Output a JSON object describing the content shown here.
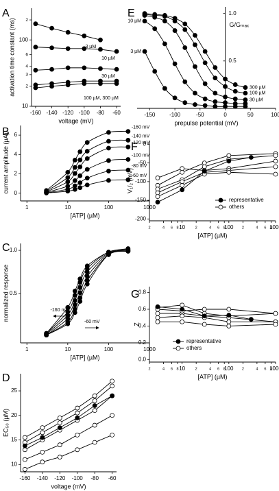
{
  "chart_data": [
    {
      "panel": "A",
      "type": "line",
      "ylabel": "activation time constant (ms)",
      "xlabel": "voltage (mV)",
      "x": [
        -160,
        -140,
        -120,
        -100,
        -80,
        -60
      ],
      "xlim": [
        -165,
        -55
      ],
      "xticks": [
        -160,
        -140,
        -120,
        -100,
        -80,
        -60
      ],
      "ylog": true,
      "ylim": [
        10,
        300
      ],
      "yticks": [
        10,
        {
          "value": 20,
          "label": "2"
        },
        {
          "value": 30,
          "label": "3"
        },
        {
          "value": 40,
          "label": "4"
        },
        {
          "value": 60,
          "label": "6"
        },
        100,
        {
          "value": 200,
          "label": "2"
        }
      ],
      "color": "#000000",
      "series": [
        {
          "name": "3 µM",
          "marker": "filled",
          "values": [
            175,
            150,
            130,
            115,
            100,
            null
          ]
        },
        {
          "name": "10 µM",
          "marker": "filled",
          "values": [
            78,
            76,
            74,
            74,
            72,
            67
          ]
        },
        {
          "name": "30 µM",
          "marker": "filled",
          "values": [
            35,
            36,
            38,
            38,
            37,
            36
          ]
        },
        {
          "marker": "filled",
          "values": [
            21,
            22,
            23,
            24,
            24,
            24
          ]
        },
        {
          "marker": "filled",
          "values": [
            19,
            20,
            21,
            22,
            22,
            22
          ]
        }
      ],
      "annotations": [
        "100 µM, 300 µM"
      ]
    },
    {
      "panel": "B",
      "type": "line",
      "ylabel": "current amplitude (µA)",
      "xlabel": "[ATP] (µM)",
      "smooth": true,
      "x": [
        3,
        10,
        15,
        20,
        30,
        100,
        300
      ],
      "xlog": true,
      "xlim": [
        0.7,
        1000
      ],
      "xticks": [
        1,
        10,
        100,
        1000
      ],
      "ylim": [
        -0.8,
        7
      ],
      "yticks": [
        0,
        2,
        4,
        6
      ],
      "color": "#000000",
      "series": [
        {
          "name": "-160 mV",
          "marker": "filled",
          "values": [
            0.28,
            2.16,
            3.42,
            4.29,
            5.25,
            6.28,
            6.39
          ]
        },
        {
          "name": "-140 mV",
          "marker": "filled",
          "values": [
            0.2,
            1.62,
            2.66,
            3.44,
            4.34,
            5.37,
            5.48
          ]
        },
        {
          "name": "-120 mV",
          "marker": "filled",
          "values": [
            0.14,
            1.18,
            2.04,
            2.72,
            3.58,
            4.66,
            4.78
          ]
        },
        {
          "name": "-100 mV",
          "marker": "filled",
          "values": [
            0.08,
            0.73,
            1.3,
            1.8,
            2.46,
            3.37,
            3.49
          ]
        },
        {
          "name": "-80 mV",
          "marker": "filled",
          "values": [
            0.04,
            0.41,
            0.76,
            1.08,
            1.56,
            2.29,
            2.39
          ]
        },
        {
          "name": "-60 mV",
          "marker": "filled",
          "values": [
            0.02,
            0.21,
            0.39,
            0.57,
            0.85,
            1.32,
            1.39
          ]
        }
      ]
    },
    {
      "panel": "C",
      "type": "line",
      "ylabel": "normalized response",
      "xlabel": "[ATP] (µM)",
      "smooth": true,
      "x": [
        3,
        10,
        15,
        20,
        30,
        100,
        300
      ],
      "xlog": true,
      "xlim": [
        0.7,
        1000
      ],
      "xticks": [
        1,
        10,
        100,
        1000
      ],
      "ylim": [
        -0.07,
        1.08
      ],
      "yticks": [
        0.5,
        {
          "value": 1,
          "label": "1.0"
        }
      ],
      "color": "#000000",
      "series": [
        {
          "marker": "filled",
          "values": [
            0.04,
            0.34,
            0.53,
            0.67,
            0.82,
            0.98,
            1.02
          ]
        },
        {
          "marker": "filled",
          "values": [
            0.04,
            0.29,
            0.48,
            0.63,
            0.79,
            0.98,
            1.01
          ]
        },
        {
          "marker": "filled",
          "values": [
            0.03,
            0.25,
            0.42,
            0.57,
            0.75,
            0.97,
            1.0
          ]
        },
        {
          "marker": "filled",
          "values": [
            0.02,
            0.21,
            0.37,
            0.51,
            0.7,
            0.96,
            1.0
          ]
        },
        {
          "marker": "filled",
          "values": [
            0.02,
            0.17,
            0.32,
            0.45,
            0.65,
            0.95,
            0.99
          ]
        },
        {
          "marker": "filled",
          "values": [
            0.02,
            0.15,
            0.28,
            0.41,
            0.61,
            0.95,
            0.99
          ]
        }
      ],
      "annotations": [
        "-160 mV",
        "-60 mV"
      ]
    },
    {
      "panel": "D",
      "type": "line",
      "ylabel": "EC₅₀ (µM)",
      "xlabel": "voltage (mV)",
      "x": [
        -160,
        -140,
        -120,
        -100,
        -80,
        -60
      ],
      "xlim": [
        -165,
        -55
      ],
      "xticks": [
        -160,
        -140,
        -120,
        -100,
        -80,
        -60
      ],
      "ylim": [
        8.5,
        28.5
      ],
      "yticks": [
        10,
        15,
        20,
        25
      ],
      "color": "#000000",
      "series": [
        {
          "marker": "filled",
          "values": [
            13.8,
            15.5,
            17.5,
            19.5,
            22,
            24
          ]
        },
        {
          "marker": "open",
          "values": [
            15.5,
            17.5,
            19.5,
            21.5,
            24,
            27
          ]
        },
        {
          "marker": "open",
          "values": [
            14.5,
            16.5,
            18.5,
            20.5,
            23,
            26
          ]
        },
        {
          "marker": "open",
          "values": [
            13,
            15,
            17,
            19,
            21,
            24
          ]
        },
        {
          "marker": "open",
          "values": [
            11,
            12.5,
            14,
            16,
            18,
            20
          ]
        },
        {
          "marker": "open",
          "values": [
            9,
            10.5,
            11.5,
            13,
            14.5,
            16
          ]
        }
      ]
    },
    {
      "panel": "E",
      "type": "line",
      "ylabel": "G/Gₘₐₓ",
      "xlabel": "prepulse potential (mV)",
      "smooth": true,
      "x": [
        -160,
        -140,
        -120,
        -100,
        -80,
        -60,
        -40,
        -20,
        0,
        20,
        40
      ],
      "xlim": [
        -175,
        100
      ],
      "xticks": [
        -150,
        -100,
        -50,
        0,
        50,
        100
      ],
      "ylim": [
        0,
        1.07
      ],
      "yticks": [
        0.5,
        {
          "value": 1,
          "label": "1.0"
        }
      ],
      "y_axis_at_x": 0,
      "color": "#000000",
      "series": [
        {
          "name": "3 µM",
          "label_pos": "start",
          "marker": "filled",
          "values": [
            0.6,
            0.39,
            0.21,
            0.11,
            0.06,
            0.04,
            0.03,
            0.02,
            0.02,
            0.02,
            0.02
          ]
        },
        {
          "name": "10 µM",
          "label_pos": "start",
          "marker": "filled",
          "values": [
            0.92,
            0.84,
            0.68,
            0.47,
            0.28,
            0.16,
            0.1,
            0.07,
            0.06,
            0.05,
            0.05
          ]
        },
        {
          "name": "30 µM",
          "label_pos": "end",
          "marker": "filled",
          "values": [
            0.98,
            0.96,
            0.92,
            0.82,
            0.64,
            0.44,
            0.26,
            0.16,
            0.12,
            0.1,
            0.09
          ]
        },
        {
          "name": "100 µM",
          "label_pos": "end",
          "marker": "filled",
          "values": [
            0.99,
            0.98,
            0.97,
            0.92,
            0.83,
            0.67,
            0.48,
            0.32,
            0.23,
            0.18,
            0.16
          ]
        },
        {
          "name": "300 µM",
          "label_pos": "end",
          "marker": "filled",
          "values": [
            1.0,
            0.99,
            0.98,
            0.95,
            0.89,
            0.77,
            0.6,
            0.43,
            0.31,
            0.25,
            0.22
          ]
        }
      ]
    },
    {
      "panel": "F",
      "type": "line",
      "ylabel": "V₁/₂ (mV)",
      "xlabel": "[ATP] (µM)",
      "xlog": true,
      "xlim": [
        2,
        1000
      ],
      "xticks": [
        2,
        4,
        6,
        8,
        10,
        {
          "value": 20,
          "label": "2"
        },
        {
          "value": 40,
          "label": "4"
        },
        {
          "value": 60,
          "label": "6"
        },
        {
          "value": 80,
          "label": "8"
        },
        100,
        {
          "value": 200,
          "label": "2"
        },
        {
          "value": 400,
          "label": "4"
        },
        {
          "value": 600,
          "label": "6"
        },
        {
          "value": 800,
          "label": "8"
        },
        1000
      ],
      "ylim": [
        -205,
        10
      ],
      "yticks": [
        -200,
        -150,
        -100,
        -50,
        0
      ],
      "legend": "lower right",
      "color": "#000000",
      "series": [
        {
          "name": "representative",
          "marker": "filled",
          "x": [
            3,
            10,
            30,
            100,
            300
          ],
          "values": [
            -155,
            -122,
            -72,
            -45,
            -35
          ]
        },
        {
          "name": "others",
          "marker": "open",
          "x": [
            3,
            10,
            30,
            100,
            1000
          ],
          "values": [
            -110,
            -75,
            -50,
            -30,
            -25
          ]
        },
        {
          "marker": "open",
          "x": [
            3,
            10,
            30,
            100,
            1000
          ],
          "values": [
            -120,
            -95,
            -60,
            -40,
            -30
          ]
        },
        {
          "marker": "open",
          "x": [
            3,
            10,
            30,
            100,
            1000
          ],
          "values": [
            -90,
            -65,
            -70,
            -65,
            -45
          ]
        },
        {
          "marker": "open",
          "x": [
            3,
            10,
            30,
            100,
            1000
          ],
          "values": [
            -130,
            -100,
            -75,
            -70,
            -60
          ]
        },
        {
          "marker": "open",
          "x": [
            3,
            10,
            30,
            100,
            1000
          ],
          "values": [
            -140,
            -110,
            -80,
            -75,
            -80
          ]
        }
      ]
    },
    {
      "panel": "G",
      "type": "line",
      "ylabel": "Z",
      "xlabel": "[ATP] (µM)",
      "xlog": true,
      "xlim": [
        2,
        1000
      ],
      "xticks": [
        2,
        4,
        6,
        8,
        10,
        {
          "value": 20,
          "label": "2"
        },
        {
          "value": 40,
          "label": "4"
        },
        {
          "value": 60,
          "label": "6"
        },
        {
          "value": 80,
          "label": "8"
        },
        100,
        {
          "value": 200,
          "label": "2"
        },
        {
          "value": 400,
          "label": "4"
        },
        {
          "value": 600,
          "label": "6"
        },
        {
          "value": 800,
          "label": "8"
        },
        1000
      ],
      "ylim": [
        -0.03,
        0.87
      ],
      "yticks": [
        {
          "value": 0,
          "label": "0.0"
        },
        0.2,
        0.4,
        0.6,
        0.8
      ],
      "legend": "lower left",
      "color": "#000000",
      "series": [
        {
          "name": "representative",
          "marker": "filled",
          "x": [
            3,
            10,
            30,
            100,
            300
          ],
          "values": [
            0.63,
            0.6,
            0.52,
            0.53,
            0.48
          ]
        },
        {
          "name": "others",
          "marker": "open",
          "x": [
            3,
            10,
            30,
            100,
            1000
          ],
          "values": [
            0.62,
            0.65,
            0.55,
            0.52,
            0.55
          ]
        },
        {
          "marker": "open",
          "x": [
            3,
            10,
            30,
            100,
            1000
          ],
          "values": [
            0.55,
            0.55,
            0.52,
            0.5,
            0.45
          ]
        },
        {
          "marker": "open",
          "x": [
            3,
            10,
            30,
            100,
            1000
          ],
          "values": [
            0.5,
            0.52,
            0.5,
            0.45,
            0.45
          ]
        },
        {
          "marker": "open",
          "x": [
            3,
            10,
            30,
            100,
            1000
          ],
          "values": [
            0.45,
            0.45,
            0.42,
            0.4,
            0.42
          ]
        },
        {
          "marker": "open",
          "x": [
            3,
            10,
            30,
            100,
            1000
          ],
          "values": [
            0.6,
            0.58,
            0.6,
            0.6,
            0.55
          ]
        }
      ]
    }
  ]
}
